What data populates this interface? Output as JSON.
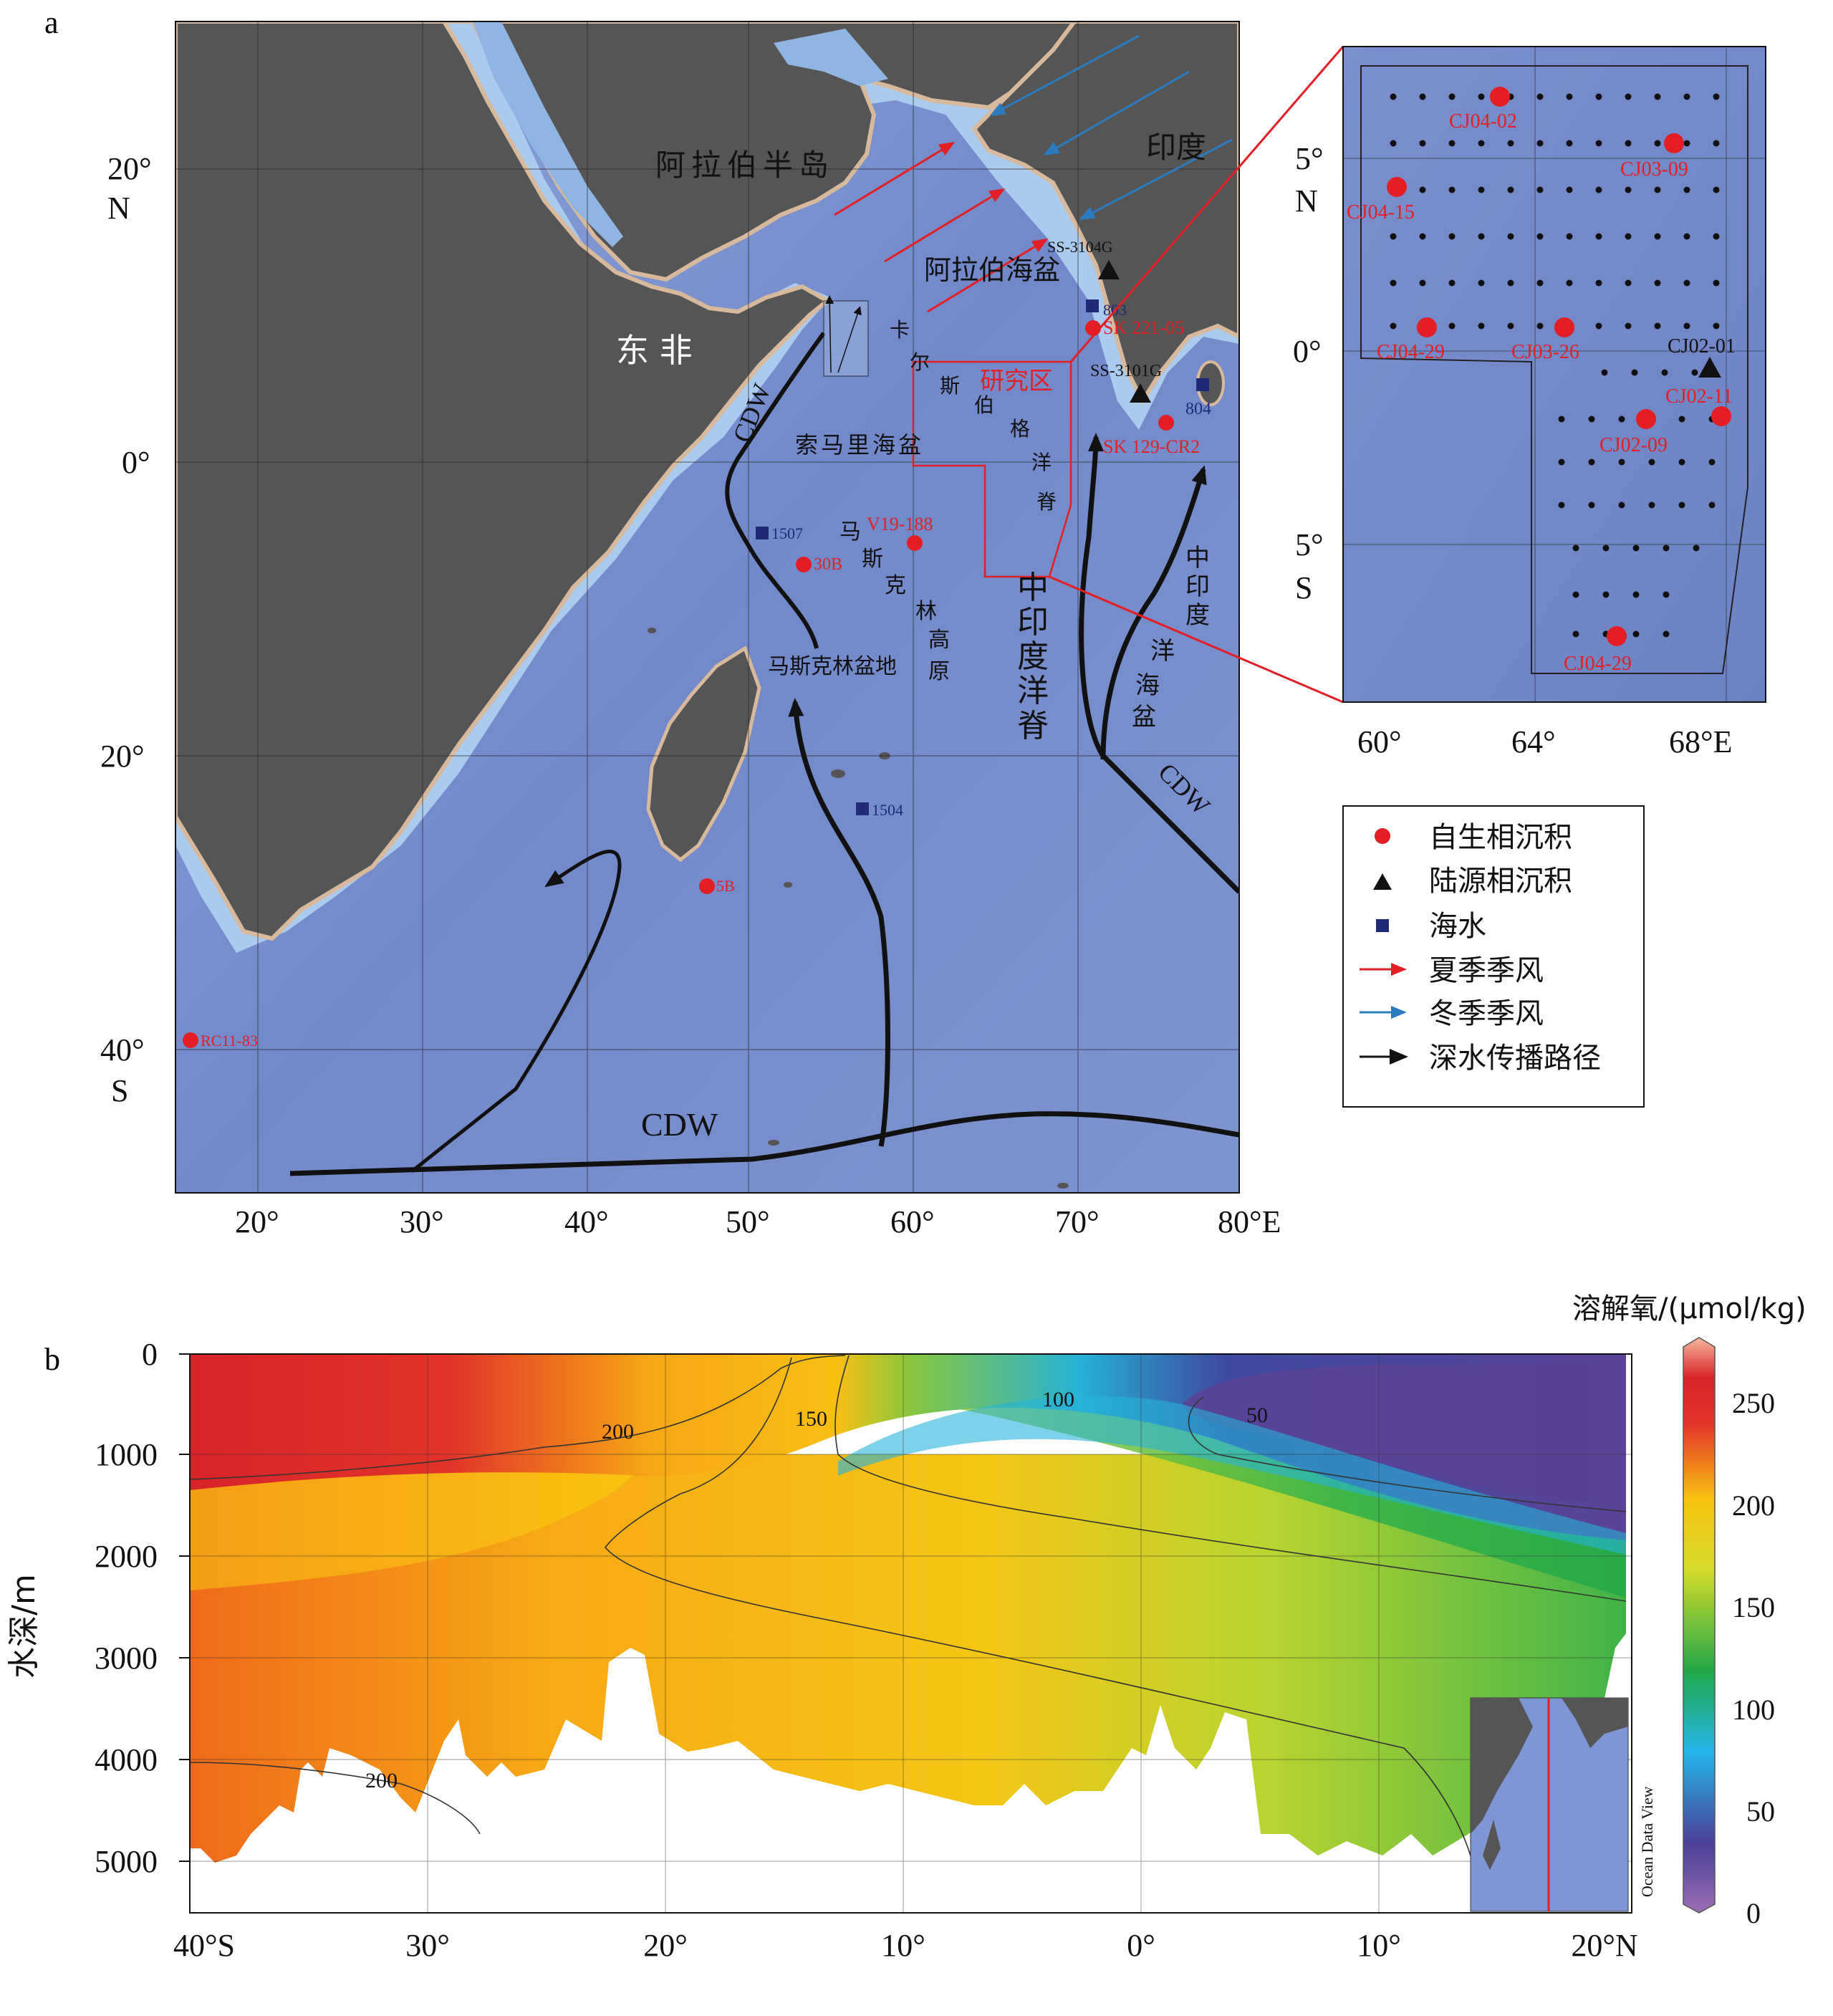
{
  "panel_a": {
    "label": "a",
    "lat_ticks": [
      "20°",
      "N",
      "0°",
      "20°",
      "40°",
      "S"
    ],
    "lon_ticks": [
      "20°",
      "30°",
      "40°",
      "50°",
      "60°",
      "70°",
      "80°E"
    ],
    "regions": {
      "arabia": "阿拉伯半岛",
      "india": "印度",
      "east_africa": "东 非",
      "arabian_basin": "阿拉伯海盆",
      "somali_basin": "索马里海盆",
      "mascarene_basin": "马斯克林盆地",
      "carlsberg_ridge": [
        "卡",
        "尔",
        "斯",
        "伯",
        "格",
        "洋",
        "脊"
      ],
      "mascarene_plateau": [
        "马",
        "斯",
        "克",
        "林",
        "高",
        "原"
      ],
      "central_indian_ridge": [
        "中",
        "印",
        "度",
        "洋",
        "脊"
      ],
      "central_indian_basin": [
        "中",
        "印",
        "度",
        "洋",
        "海",
        "盆"
      ],
      "study_area": "研究区"
    },
    "cdw_labels": [
      "CDW",
      "CDW",
      "CDW"
    ],
    "stations": [
      {
        "id": "SS-3104G",
        "kind": "terrigenous"
      },
      {
        "id": "803",
        "kind": "seawater"
      },
      {
        "id": "SK 221-05",
        "kind": "authigenic"
      },
      {
        "id": "SS-3101G",
        "kind": "terrigenous"
      },
      {
        "id": "804",
        "kind": "seawater"
      },
      {
        "id": "SK 129-CR2",
        "kind": "authigenic"
      },
      {
        "id": "1507",
        "kind": "seawater"
      },
      {
        "id": "V19-188",
        "kind": "authigenic"
      },
      {
        "id": "30B",
        "kind": "authigenic"
      },
      {
        "id": "1504",
        "kind": "seawater"
      },
      {
        "id": "5B",
        "kind": "authigenic"
      },
      {
        "id": "RC11-83",
        "kind": "authigenic"
      }
    ]
  },
  "inset": {
    "lat_ticks": [
      "5°",
      "N",
      "0°",
      "5°",
      "S"
    ],
    "lon_ticks": [
      "60°",
      "64°",
      "68°E"
    ],
    "samples": [
      {
        "id": "CJ04-02",
        "kind": "authigenic"
      },
      {
        "id": "CJ03-09",
        "kind": "authigenic"
      },
      {
        "id": "CJ04-15",
        "kind": "authigenic"
      },
      {
        "id": "CJ04-29",
        "kind": "authigenic"
      },
      {
        "id": "CJ03-26",
        "kind": "authigenic"
      },
      {
        "id": "CJ02-01",
        "kind": "terrigenous"
      },
      {
        "id": "CJ02-11",
        "kind": "authigenic"
      },
      {
        "id": "CJ02-09",
        "kind": "authigenic"
      },
      {
        "id": "CJ04-29",
        "kind": "authigenic"
      }
    ]
  },
  "legend": [
    {
      "label": "自生相沉积",
      "symbol": "circle",
      "color": "#e31e24"
    },
    {
      "label": "陆源相沉积",
      "symbol": "triangle",
      "color": "#111111"
    },
    {
      "label": "海水",
      "symbol": "square",
      "color": "#1f2a78"
    },
    {
      "label": "夏季季风",
      "symbol": "arrow",
      "color": "#e31e24"
    },
    {
      "label": "冬季季风",
      "symbol": "arrow",
      "color": "#2a7bc0"
    },
    {
      "label": "深水传播路径",
      "symbol": "arrow",
      "color": "#111111"
    }
  ],
  "panel_b": {
    "label": "b",
    "ylabel": "水深/m",
    "y_ticks": [
      "0",
      "1000",
      "2000",
      "3000",
      "4000",
      "5000"
    ],
    "x_ticks": [
      "40°S",
      "30°",
      "20°",
      "10°",
      "0°",
      "10°",
      "20°N"
    ],
    "contour_labels": [
      "200",
      "150",
      "100",
      "50",
      "200"
    ],
    "colorbar_title": "溶解氧/(μmol/kg)",
    "colorbar_ticks": [
      "250",
      "200",
      "150",
      "100",
      "50",
      "0"
    ],
    "watermark": "Ocean Data View",
    "colors": {
      "high": "#d8232a",
      "mid": "#2ab34a",
      "low": "#6a4c9c"
    }
  },
  "colors": {
    "land": "#555555",
    "ocean_deep": "#6f86c8",
    "ocean_shallow": "#a7c8ea",
    "coast": "#d9b99b"
  }
}
